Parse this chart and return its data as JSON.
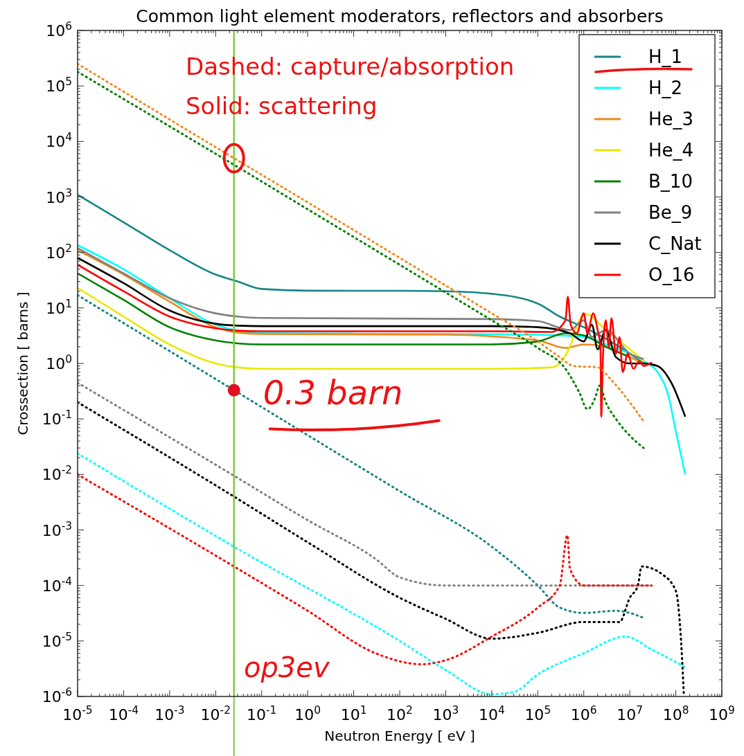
{
  "chart_data": {
    "type": "line",
    "title": "Common light element moderators, reflectors and absorbers",
    "xlabel": "Neutron Energy [ eV ]",
    "ylabel": "Crossection [ barns ]",
    "log": "xy",
    "xlim": [
      1e-05,
      1000000000.0
    ],
    "ylim": [
      1e-06,
      1000000.0
    ],
    "xticks": [
      {
        "value": 1e-05,
        "label": "10$^{-5}$"
      },
      {
        "value": 0.0001,
        "label": "10$^{-4}$"
      },
      {
        "value": 0.001,
        "label": "10$^{-3}$"
      },
      {
        "value": 0.01,
        "label": "10$^{-2}$"
      },
      {
        "value": 0.1,
        "label": "10$^{-1}$"
      },
      {
        "value": 1,
        "label": "10$^{0}$"
      },
      {
        "value": 10,
        "label": "10$^{1}$"
      },
      {
        "value": 100,
        "label": "10$^{2}$"
      },
      {
        "value": 1000,
        "label": "10$^{3}$"
      },
      {
        "value": 10000.0,
        "label": "10$^{4}$"
      },
      {
        "value": 100000.0,
        "label": "10$^{5}$"
      },
      {
        "value": 1000000.0,
        "label": "10$^{6}$"
      },
      {
        "value": 10000000.0,
        "label": "10$^{7}$"
      },
      {
        "value": 100000000.0,
        "label": "10$^{8}$"
      },
      {
        "value": 1000000000.0,
        "label": "10$^{9}$"
      }
    ],
    "yticks": [
      {
        "value": 1e-06,
        "label": "10$^{-6}$"
      },
      {
        "value": 1e-05,
        "label": "10$^{-5}$"
      },
      {
        "value": 0.0001,
        "label": "10$^{-4}$"
      },
      {
        "value": 0.001,
        "label": "10$^{-3}$"
      },
      {
        "value": 0.01,
        "label": "10$^{-2}$"
      },
      {
        "value": 0.1,
        "label": "10$^{-1}$"
      },
      {
        "value": 1,
        "label": "10$^{0}$"
      },
      {
        "value": 10,
        "label": "10$^{1}$"
      },
      {
        "value": 100,
        "label": "10$^{2}$"
      },
      {
        "value": 1000,
        "label": "10$^{3}$"
      },
      {
        "value": 10000.0,
        "label": "10$^{4}$"
      },
      {
        "value": 100000.0,
        "label": "10$^{5}$"
      },
      {
        "value": 1000000.0,
        "label": "10$^{6}$"
      }
    ],
    "legend": "top right",
    "line_style": "solid",
    "ref_lines": [
      {
        "axis": "x",
        "value": 0.025,
        "color": "#7cc83c"
      }
    ],
    "annotations": [
      "Dashed: capture/absorption",
      "Solid: scattering",
      {
        "text": "0.3 barn",
        "x": 0.025,
        "y": 0.33
      },
      "op3ev"
    ],
    "series": [
      {
        "name": "H_1",
        "color": "#178585",
        "x": [
          1e-05,
          0.0001,
          0.001,
          0.01,
          0.03,
          0.1,
          1,
          100,
          1000,
          10000.0,
          100000.0,
          300000.0,
          1000000.0,
          3000000.0,
          10000000.0,
          20000000.0
        ],
        "values": [
          1100,
          350,
          110,
          40,
          30,
          22,
          20.5,
          20.4,
          20,
          18,
          12,
          7,
          4.5,
          2.8,
          1.5,
          1.0
        ]
      },
      {
        "name": "H_2",
        "color": "#00ffff",
        "x": [
          1e-05,
          0.0001,
          0.001,
          0.01,
          0.1,
          1000,
          100000.0,
          1000000.0,
          3000000.0,
          10000000.0,
          20000000.0,
          40000000.0,
          70000000.0,
          100000000.0,
          160000000.0
        ],
        "values": [
          135,
          50,
          15,
          5,
          3.5,
          3.4,
          3.3,
          3,
          2.2,
          1.5,
          1.1,
          0.7,
          0.25,
          0.06,
          0.01
        ]
      },
      {
        "name": "He_3",
        "color": "#f28a1c",
        "x": [
          1e-05,
          0.0001,
          0.001,
          0.01,
          0.03,
          0.1,
          1000,
          100000.0,
          400000.0,
          1000000.0,
          3000000.0,
          10000000.0,
          20000000.0
        ],
        "values": [
          110,
          40,
          13,
          4.5,
          3.6,
          3.4,
          3.3,
          2.6,
          1.9,
          2.2,
          2,
          1.3,
          1.0
        ]
      },
      {
        "name": "He_4",
        "color": "#e8e800",
        "x": [
          1e-05,
          0.0001,
          0.001,
          0.01,
          0.03,
          0.1,
          10000.0,
          200000.0,
          500000.0,
          800000.0,
          1100000.0,
          3000000.0,
          10000000.0,
          20000000.0
        ],
        "values": [
          23,
          7,
          2.2,
          1,
          0.85,
          0.8,
          0.8,
          0.85,
          2,
          6,
          7.8,
          4,
          1.8,
          1.1
        ]
      },
      {
        "name": "B_10",
        "color": "#008000",
        "x": [
          1e-05,
          0.0001,
          0.001,
          0.01,
          0.03,
          0.1,
          10000.0,
          100000.0,
          400000.0,
          1000000.0,
          3000000.0,
          10000000.0
        ],
        "values": [
          42,
          14,
          4.5,
          2.6,
          2.3,
          2.2,
          2.2,
          2.5,
          3.5,
          3.2,
          2,
          1.3
        ]
      },
      {
        "name": "Be_9",
        "color": "#808080",
        "x": [
          1e-05,
          0.0001,
          0.001,
          0.01,
          0.03,
          0.1,
          10000.0,
          100000.0,
          500000.0,
          1000000.0,
          1500000.0,
          3000000.0,
          10000000.0,
          20000000.0
        ],
        "values": [
          120,
          42,
          15,
          8,
          7,
          6.6,
          6.3,
          5.8,
          4,
          6,
          3,
          4,
          1.5,
          1.2
        ]
      },
      {
        "name": "C_Nat",
        "color": "#000000",
        "x": [
          1e-05,
          0.0001,
          0.001,
          0.01,
          0.03,
          0.1,
          10000.0,
          100000.0,
          500000.0,
          1000000.0,
          1500000.0,
          2000000.0,
          3000000.0,
          5000000.0,
          10000000.0,
          20000000.0,
          40000000.0,
          80000000.0,
          160000000.0
        ],
        "values": [
          80,
          28,
          9,
          5.2,
          4.8,
          4.7,
          4.7,
          4.5,
          3.5,
          2.5,
          5,
          1.8,
          4,
          1.3,
          1.0,
          1.0,
          0.9,
          0.45,
          0.11
        ]
      },
      {
        "name": "O_16",
        "color": "#ff0000",
        "x": [
          1e-05,
          0.0001,
          0.001,
          0.01,
          0.03,
          0.1,
          10000.0,
          200000.0,
          400000.0,
          450000.0,
          520000.0,
          700000.0,
          1000000.0,
          1200000.0,
          1600000.0,
          2000000.0,
          2300000.0,
          2400000.0,
          2600000.0,
          3000000.0,
          3500000.0,
          4000000.0,
          5000000.0,
          6000000.0,
          7000000.0,
          9000000.0,
          12000000.0,
          16000000.0,
          20000000.0,
          30000000.0
        ],
        "values": [
          60,
          20,
          7,
          4.3,
          3.9,
          3.8,
          3.8,
          3.7,
          6,
          16,
          5,
          3.5,
          8,
          3.5,
          8,
          4,
          2,
          0.11,
          1.2,
          6,
          2,
          6.5,
          1.5,
          3,
          0.7,
          1.5,
          0.8,
          1.1,
          0.9,
          1.05
        ]
      },
      {
        "color": "#178585",
        "line_style": "dotted",
        "x": [
          1e-05,
          0.025,
          100,
          10000.0,
          100000.0,
          300000.0,
          1000000.0,
          5000000.0,
          10000000.0,
          20000000.0
        ],
        "values": [
          17,
          0.33,
          0.005,
          0.0005,
          0.0001,
          4e-05,
          3.2e-05,
          3.5e-05,
          3.2e-05,
          2.6e-05
        ]
      },
      {
        "color": "#00ffff",
        "line_style": "dotted",
        "x": [
          1e-05,
          0.025,
          100,
          1000,
          10000.0,
          30000.0,
          100000.0,
          1000000.0,
          8000000.0,
          30000000.0,
          150000000.0
        ],
        "values": [
          0.024,
          0.0005,
          1e-05,
          3e-06,
          1.1e-06,
          1.2e-06,
          2.5e-06,
          6e-06,
          1.2e-05,
          7e-06,
          3.5e-06
        ]
      },
      {
        "color": "#f28a1c",
        "line_style": "dotted",
        "x": [
          1e-05,
          0.025,
          1,
          100,
          10000.0,
          100000.0,
          300000.0,
          600000.0,
          2000000.0,
          4000000.0,
          10000000.0,
          20000000.0
        ],
        "values": [
          250000.0,
          5000,
          800,
          80,
          8,
          2.5,
          1.3,
          0.9,
          0.85,
          0.5,
          0.2,
          0.09
        ]
      },
      {
        "color": "#008000",
        "line_style": "dotted",
        "x": [
          1e-05,
          0.025,
          1,
          100,
          10000.0,
          100000.0,
          400000.0,
          800000.0,
          1200000.0,
          1800000.0,
          2200000.0,
          3000000.0,
          5000000.0,
          10000000.0,
          20000000.0
        ],
        "values": [
          180000.0,
          3800,
          600,
          60,
          6,
          1.9,
          0.8,
          0.3,
          0.15,
          0.25,
          0.4,
          0.2,
          0.1,
          0.05,
          0.03
        ]
      },
      {
        "color": "#808080",
        "line_style": "dotted",
        "x": [
          1e-05,
          0.025,
          1,
          30,
          100,
          1000,
          10000000.0,
          30000000.0
        ],
        "values": [
          0.45,
          0.0095,
          0.0015,
          0.0003,
          0.00014,
          0.0001,
          0.0001,
          0.0001
        ]
      },
      {
        "color": "#000000",
        "line_style": "dotted",
        "x": [
          1e-05,
          0.025,
          1,
          100,
          1000,
          10000.0,
          100000.0,
          1000000.0,
          6000000.0,
          10000000.0,
          15000000.0,
          18000000.0,
          50000000.0,
          100000000.0,
          130000000.0,
          150000000.0
        ],
        "values": [
          0.2,
          0.004,
          0.0006,
          6e-05,
          2.5e-05,
          1.1e-05,
          1.4e-05,
          2.2e-05,
          2.2e-05,
          6e-05,
          0.0001,
          0.00022,
          0.00016,
          8e-05,
          1e-05,
          1e-06
        ]
      },
      {
        "color": "#ff0000",
        "line_style": "dotted",
        "x": [
          1e-05,
          0.025,
          1,
          30,
          300,
          1000,
          10000.0,
          100000.0,
          300000.0,
          440000.0,
          500000.0,
          1000000.0,
          30000000.0
        ],
        "values": [
          0.01,
          0.00022,
          3.5e-05,
          6e-06,
          3.8e-06,
          4.5e-06,
          1.2e-05,
          4e-05,
          0.0001,
          0.0008,
          0.0002,
          0.0001,
          0.0001
        ]
      }
    ]
  }
}
